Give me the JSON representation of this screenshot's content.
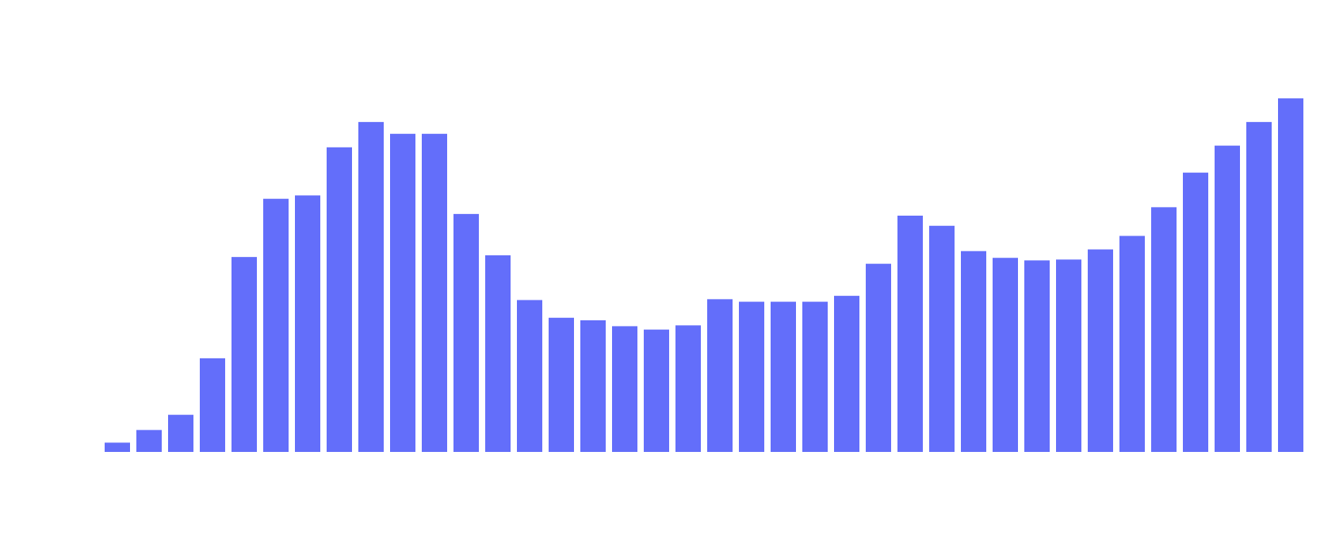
{
  "chart_data": {
    "type": "bar",
    "categories": [
      null,
      null,
      null,
      null,
      null,
      null,
      null,
      null,
      null,
      null,
      null,
      null,
      null,
      null,
      null,
      null,
      null,
      null,
      null,
      null,
      null,
      null,
      null,
      null,
      null,
      null,
      null,
      null,
      null,
      null,
      null,
      null,
      null,
      null,
      null,
      null,
      null,
      null
    ],
    "values": [
      11,
      26,
      44,
      111,
      231,
      300,
      304,
      361,
      391,
      377,
      377,
      282,
      233,
      180,
      159,
      156,
      149,
      145,
      150,
      181,
      178,
      178,
      178,
      185,
      223,
      280,
      268,
      238,
      230,
      227,
      228,
      240,
      256,
      290,
      331,
      363,
      391,
      419
    ],
    "color": "#636efa",
    "ylim": [
      0,
      420
    ]
  }
}
